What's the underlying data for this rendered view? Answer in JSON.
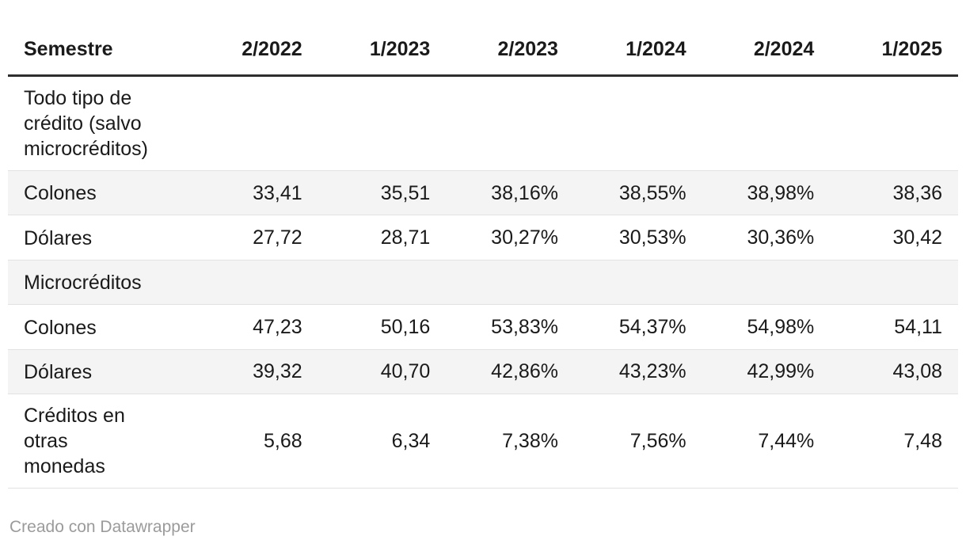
{
  "chart_data": {
    "type": "table",
    "columns": [
      "Semestre",
      "2/2022",
      "1/2023",
      "2/2023",
      "1/2024",
      "2/2024",
      "1/2025"
    ],
    "rows": [
      {
        "label": "Todo tipo de crédito (salvo microcréditos)",
        "section": true,
        "values": [
          "",
          "",
          "",
          "",
          "",
          ""
        ]
      },
      {
        "label": "Colones",
        "section": false,
        "values": [
          "33,41",
          "35,51",
          "38,16%",
          "38,55%",
          "38,98%",
          "38,36"
        ]
      },
      {
        "label": "Dólares",
        "section": false,
        "values": [
          "27,72",
          "28,71",
          "30,27%",
          "30,53%",
          "30,36%",
          "30,42"
        ]
      },
      {
        "label": "Microcréditos",
        "section": true,
        "values": [
          "",
          "",
          "",
          "",
          "",
          ""
        ]
      },
      {
        "label": "Colones",
        "section": false,
        "values": [
          "47,23",
          "50,16",
          "53,83%",
          "54,37%",
          "54,98%",
          "54,11"
        ]
      },
      {
        "label": "Dólares",
        "section": false,
        "values": [
          "39,32",
          "40,70",
          "42,86%",
          "43,23%",
          "42,99%",
          "43,08"
        ]
      },
      {
        "label": "Créditos en otras monedas",
        "section": false,
        "values": [
          "5,68",
          "6,34",
          "7,38%",
          "7,56%",
          "7,44%",
          "7,48"
        ]
      }
    ],
    "layout": {
      "zebra_striping": true,
      "header_rule": "thick-dark-bottom-border",
      "first_column_align": "left",
      "value_columns_align": "right"
    }
  },
  "footer": {
    "attribution": "Creado con Datawrapper"
  },
  "colors": {
    "text": "#1a1a1a",
    "stripe": "#f4f4f4",
    "row_separator": "#e2e2e2",
    "header_rule": "#2e2e2e",
    "attribution": "#9b9b9b",
    "background": "#ffffff"
  }
}
